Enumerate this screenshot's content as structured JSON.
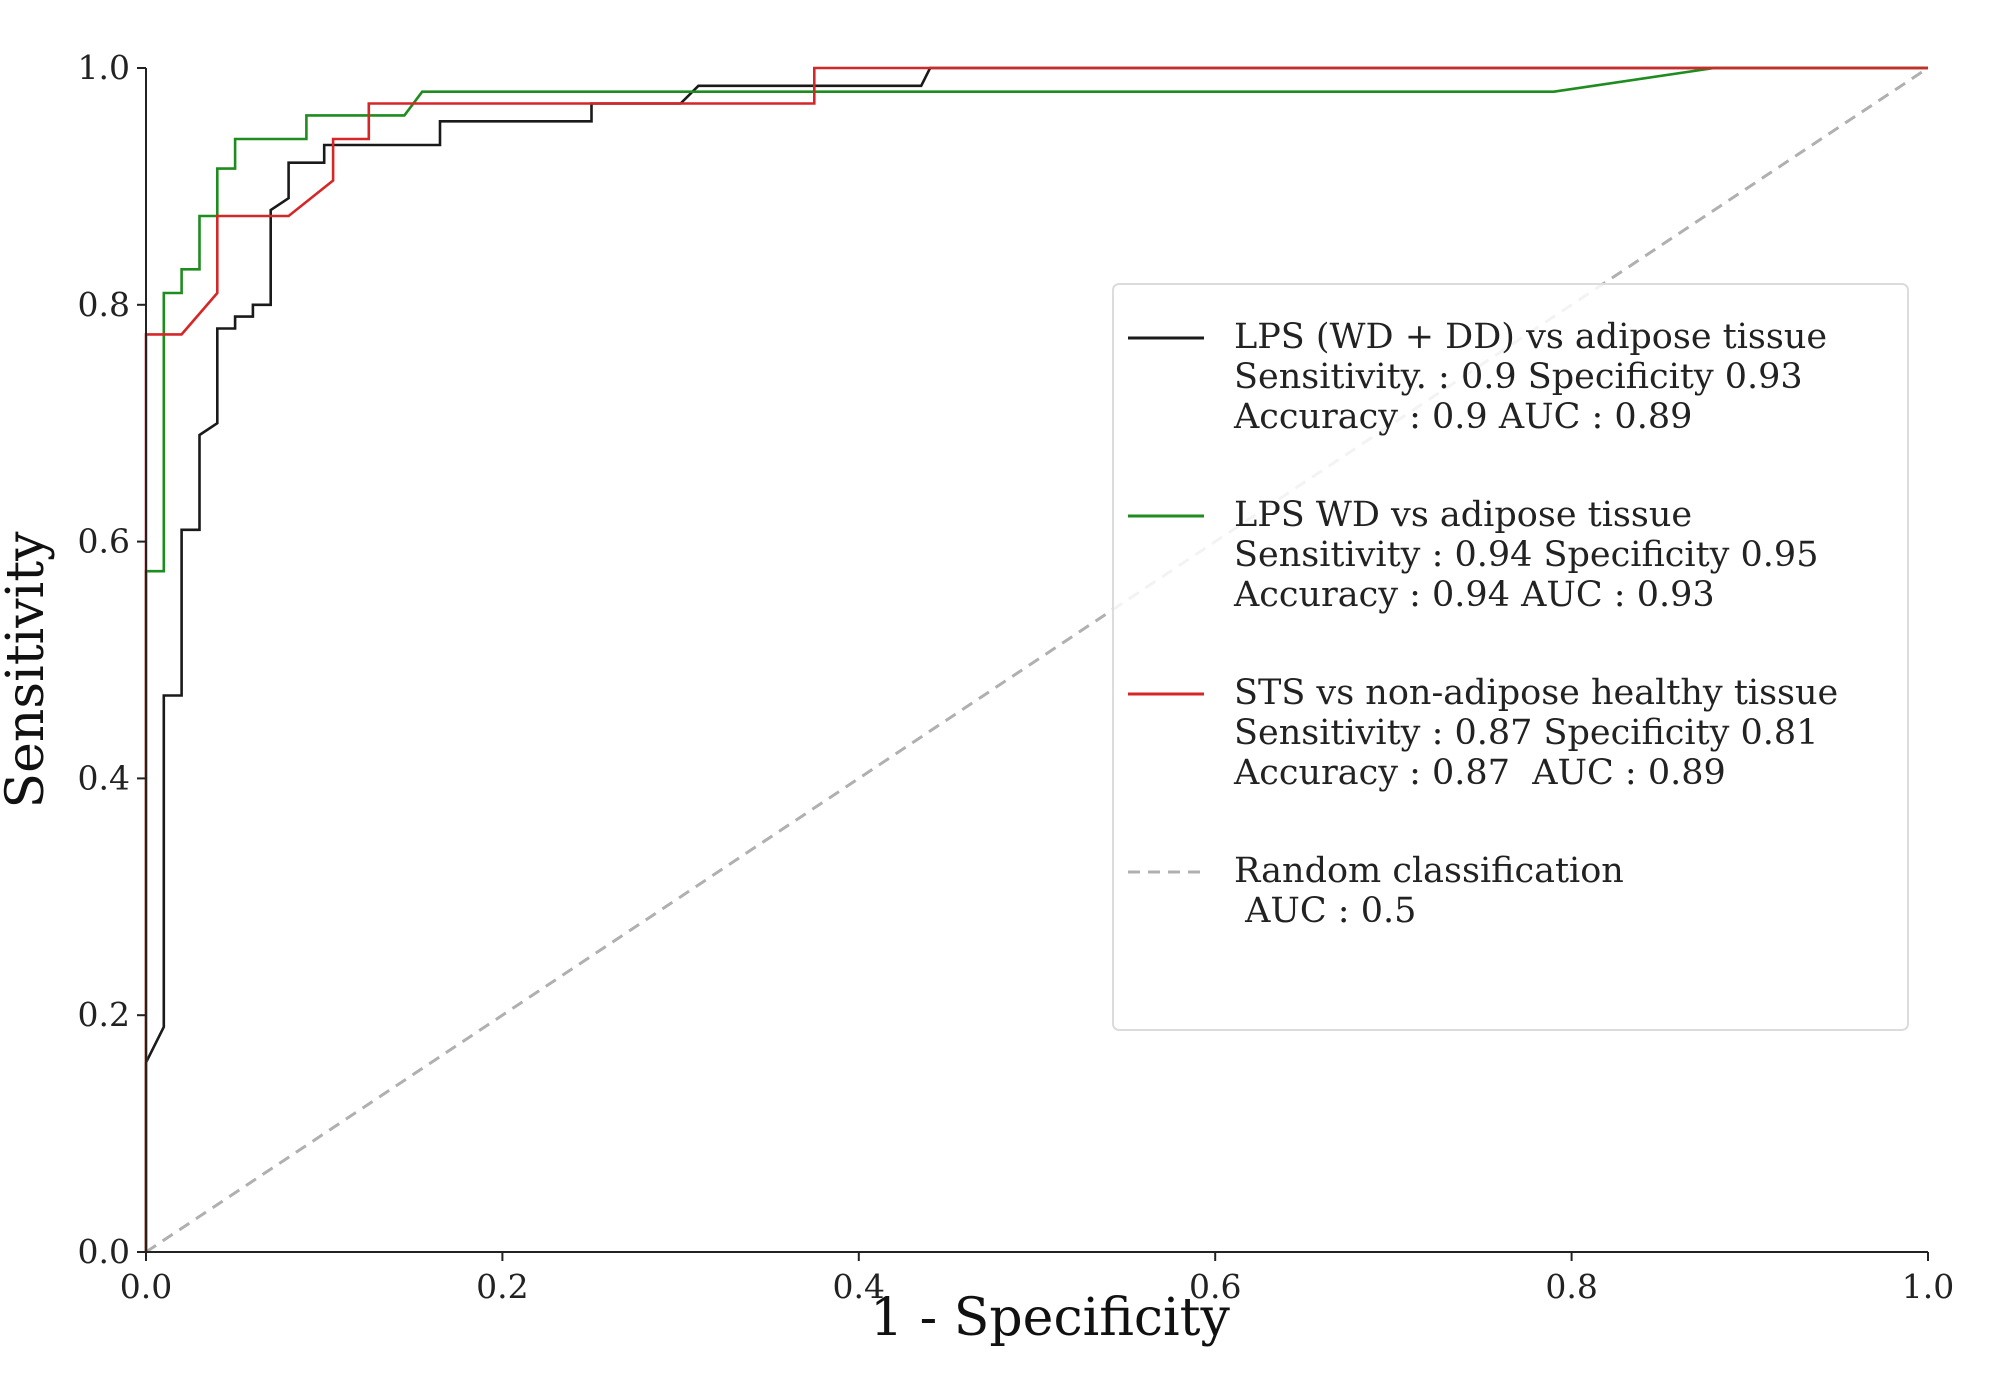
{
  "chart_data": {
    "type": "line",
    "title": "",
    "xlabel": "1 - Specificity",
    "ylabel": "Sensitivity",
    "xlim": [
      0.0,
      1.0
    ],
    "ylim": [
      0.0,
      1.0
    ],
    "xticks": [
      "0.0",
      "0.2",
      "0.4",
      "0.6",
      "0.8",
      "1.0"
    ],
    "yticks": [
      "0.0",
      "0.2",
      "0.4",
      "0.6",
      "0.8",
      "1.0"
    ],
    "grid": false,
    "legend_position": "center-right",
    "series": [
      {
        "name": "LPS (WD + DD) vs adipose tissue",
        "legend_lines": [
          "LPS (WD + DD) vs adipose tissue",
          "Sensitivity. : 0.9 Specificity 0.93",
          "Accuracy : 0.9 AUC : 0.89"
        ],
        "color": "#1a1a1a",
        "dashed": false,
        "x": [
          0.0,
          0.0,
          0.0,
          0.01,
          0.01,
          0.02,
          0.02,
          0.03,
          0.03,
          0.04,
          0.04,
          0.05,
          0.05,
          0.06,
          0.06,
          0.07,
          0.07,
          0.08,
          0.08,
          0.09,
          0.1,
          0.1,
          0.12,
          0.165,
          0.165,
          0.25,
          0.25,
          0.3,
          0.31,
          0.435,
          0.44,
          0.8,
          0.85,
          1.0
        ],
        "y": [
          0.0,
          0.16,
          0.16,
          0.19,
          0.47,
          0.47,
          0.61,
          0.61,
          0.69,
          0.7,
          0.78,
          0.78,
          0.79,
          0.79,
          0.8,
          0.8,
          0.88,
          0.89,
          0.92,
          0.92,
          0.92,
          0.935,
          0.935,
          0.935,
          0.955,
          0.955,
          0.97,
          0.97,
          0.985,
          0.985,
          1.0,
          1.0,
          1.0,
          1.0
        ]
      },
      {
        "name": "LPS WD vs adipose tissue",
        "legend_lines": [
          "LPS WD vs adipose tissue",
          "Sensitivity : 0.94 Specificity 0.95",
          "Accuracy : 0.94 AUC : 0.93"
        ],
        "color": "#1f8c1f",
        "dashed": false,
        "x": [
          0.0,
          0.0,
          0.01,
          0.01,
          0.02,
          0.02,
          0.03,
          0.03,
          0.04,
          0.04,
          0.05,
          0.05,
          0.09,
          0.09,
          0.145,
          0.155,
          0.4,
          0.79,
          0.88,
          1.0
        ],
        "y": [
          0.0,
          0.575,
          0.575,
          0.81,
          0.81,
          0.83,
          0.83,
          0.875,
          0.875,
          0.915,
          0.915,
          0.94,
          0.94,
          0.96,
          0.96,
          0.98,
          0.98,
          0.98,
          1.0,
          1.0
        ]
      },
      {
        "name": "STS vs non-adipose healthy tissue",
        "legend_lines": [
          "STS vs non-adipose healthy tissue",
          "Sensitivity : 0.87 Specificity 0.81",
          "Accuracy : 0.87  AUC : 0.89"
        ],
        "color": "#d62728",
        "dashed": false,
        "x": [
          0.0,
          0.0,
          0.02,
          0.04,
          0.04,
          0.08,
          0.105,
          0.105,
          0.125,
          0.125,
          0.245,
          0.375,
          0.375,
          1.0
        ],
        "y": [
          0.0,
          0.775,
          0.775,
          0.81,
          0.875,
          0.875,
          0.905,
          0.94,
          0.94,
          0.97,
          0.97,
          0.97,
          1.0,
          1.0
        ]
      },
      {
        "name": "Random classification",
        "legend_lines": [
          "Random classification",
          " AUC : 0.5"
        ],
        "color": "#b0b0b0",
        "dashed": true,
        "x": [
          0.0,
          1.0
        ],
        "y": [
          0.0,
          1.0
        ]
      }
    ]
  }
}
